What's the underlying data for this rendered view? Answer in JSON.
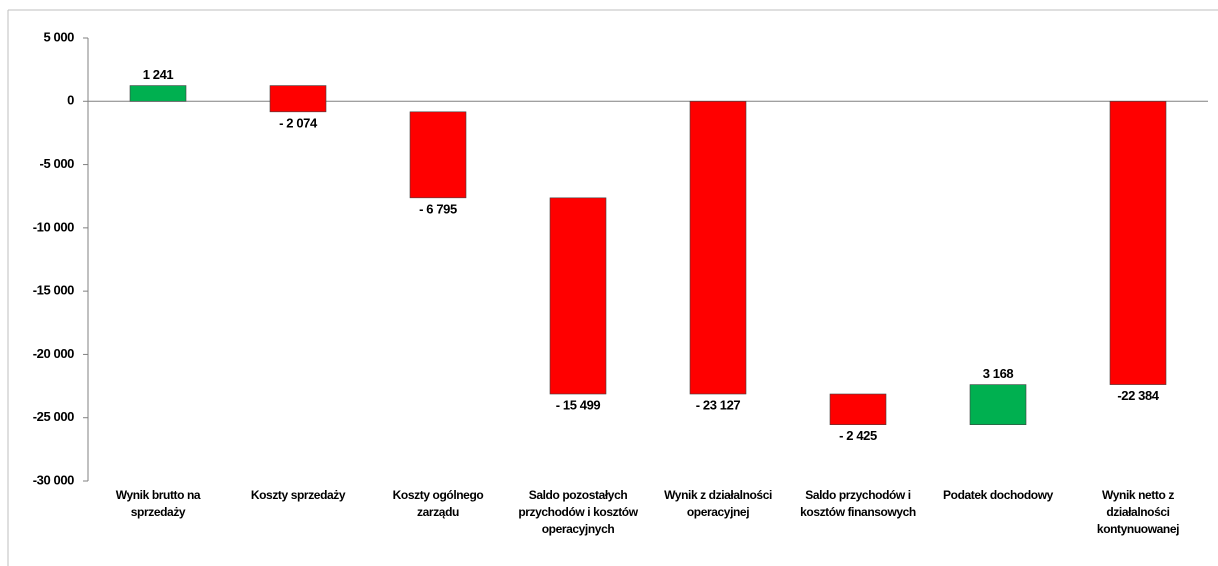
{
  "chart_data": {
    "type": "waterfall",
    "categories": [
      "Wynik brutto na sprzedaży",
      "Koszty sprzedaży",
      "Koszty ogólnego zarządu",
      "Saldo pozostałych przychodów i kosztów operacyjnych",
      "Wynik z działalności operacyjnej",
      "Saldo przychodów i kosztów finansowych",
      "Podatek dochodowy",
      "Wynik netto z działalności kontynuowanej"
    ],
    "values": [
      1241,
      -2074,
      -6795,
      -15499,
      -23127,
      -2425,
      3168,
      -22384
    ],
    "value_labels": [
      "1 241",
      "- 2 074",
      "- 6 795",
      "- 15 499",
      "- 23 127",
      "- 2 425",
      "3 168",
      "-22 384"
    ],
    "total_indices": [
      4,
      7
    ],
    "positive_color": "#00b050",
    "negative_color": "#ff0000",
    "ylim": [
      -30000,
      5000
    ],
    "yticks": [
      {
        "value": 5000,
        "label": "5 000"
      },
      0,
      {
        "value": -5000,
        "label": "-5 000"
      },
      {
        "value": -10000,
        "label": "-10 000"
      },
      {
        "value": -15000,
        "label": "-15 000"
      },
      {
        "value": -20000,
        "label": "-20 000"
      },
      {
        "value": -25000,
        "label": "-25 000"
      },
      {
        "value": -30000,
        "label": "-30 000"
      }
    ]
  }
}
